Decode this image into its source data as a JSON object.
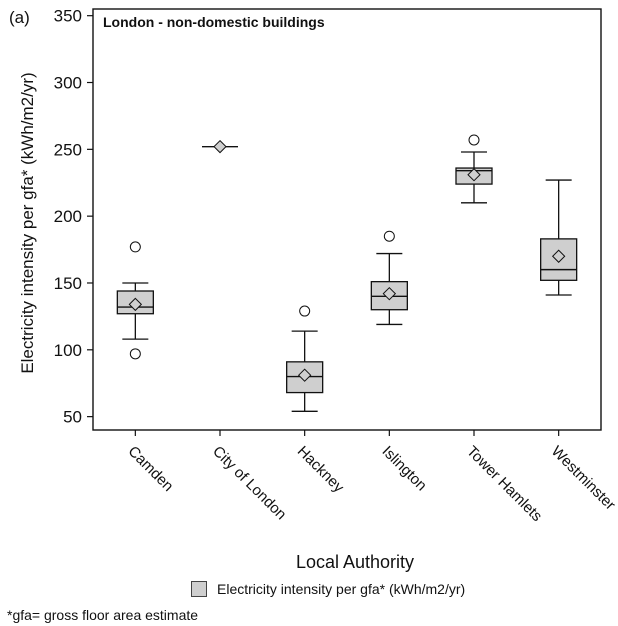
{
  "figure": {
    "panel_label": "(a)",
    "footnote": "*gfa= gross floor area estimate"
  },
  "colors": {
    "box_fill": "#cfcfcf",
    "stroke": "#111111",
    "marker_fill": "#cfcfcf",
    "background": "#ffffff"
  },
  "chart_data": {
    "type": "box",
    "title": "London - non-domestic buildings",
    "xlabel": "Local Authority",
    "ylabel": "Electricity intensity per gfa* (kWh/m2/yr)",
    "ylim": [
      40,
      355
    ],
    "yticks": [
      50,
      100,
      150,
      200,
      250,
      300,
      350
    ],
    "grid": false,
    "legend": {
      "label": "Electricity intensity per gfa* (kWh/m2/yr)",
      "placement": "bottom"
    },
    "categories": [
      "Camden",
      "City of London",
      "Hackney",
      "Islington",
      "Tower Hamlets",
      "Westminster"
    ],
    "boxes": [
      {
        "category": "Camden",
        "whisker_low": 108,
        "q1": 127,
        "median": 132,
        "q3": 144,
        "whisker_high": 150,
        "mean": 134,
        "outliers": [
          177,
          97
        ]
      },
      {
        "category": "City of London",
        "whisker_low": null,
        "q1": 252,
        "median": 252,
        "q3": 252,
        "whisker_high": null,
        "mean": 252,
        "outliers": []
      },
      {
        "category": "Hackney",
        "whisker_low": 54,
        "q1": 68,
        "median": 80,
        "q3": 91,
        "whisker_high": 114,
        "mean": 81,
        "outliers": [
          129
        ]
      },
      {
        "category": "Islington",
        "whisker_low": 119,
        "q1": 130,
        "median": 140,
        "q3": 151,
        "whisker_high": 172,
        "mean": 142,
        "outliers": [
          185
        ]
      },
      {
        "category": "Tower Hamlets",
        "whisker_low": 210,
        "q1": 224,
        "median": 234,
        "q3": 236,
        "whisker_high": 248,
        "mean": 231,
        "outliers": [
          257
        ]
      },
      {
        "category": "Westminster",
        "whisker_low": 141,
        "q1": 152,
        "median": 160,
        "q3": 183,
        "whisker_high": 227,
        "mean": 170,
        "outliers": []
      }
    ]
  }
}
